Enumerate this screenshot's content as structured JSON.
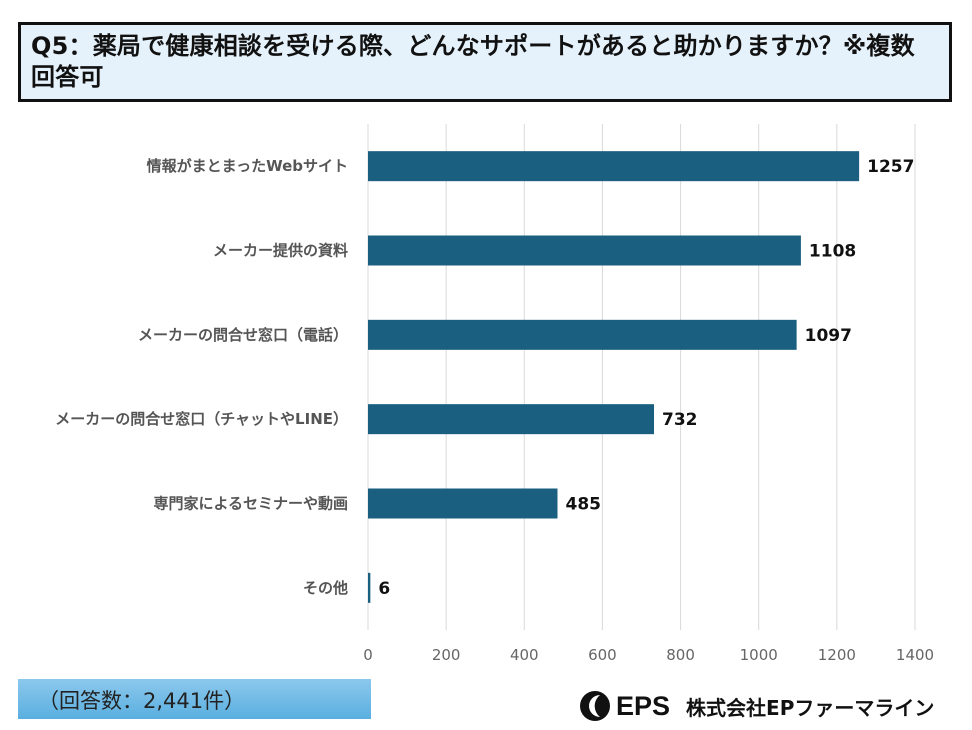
{
  "title": "Q5：薬局で健康相談を受ける際、どんなサポートがあると助かりますか？※複数回答可",
  "response_note": "（回答数：2,441件）",
  "brand": {
    "logo_text": "EPS",
    "company": "株式会社EPファーマライン"
  },
  "colors": {
    "bar": "#1a5f7f",
    "title_bg": "#e6f2fb",
    "grid": "#d9d9d9"
  },
  "chart_data": {
    "type": "bar",
    "orientation": "horizontal",
    "title": "Q5：薬局で健康相談を受ける際、どんなサポートがあると助かりますか？※複数回答可",
    "categories": [
      "情報がまとまったWebサイト",
      "メーカー提供の資料",
      "メーカーの問合せ窓口（電話）",
      "メーカーの問合せ窓口（チャットやLINE）",
      "専門家によるセミナーや動画",
      "その他"
    ],
    "values": [
      1257,
      1108,
      1097,
      732,
      485,
      6
    ],
    "xlim": [
      0,
      1400
    ],
    "xticks": [
      0,
      200,
      400,
      600,
      800,
      1000,
      1200,
      1400
    ],
    "xlabel": "",
    "ylabel": "",
    "grid": true,
    "data_labels": true
  }
}
